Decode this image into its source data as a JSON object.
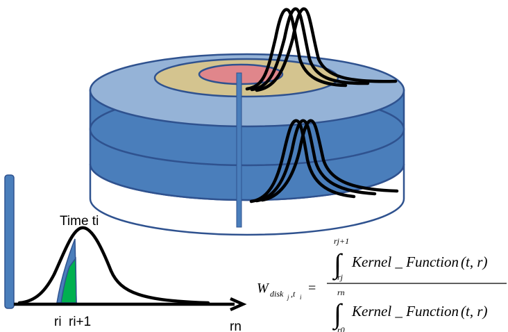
{
  "labels": {
    "time": "Time ti",
    "ri": "ri",
    "ri1": "ri+1",
    "rn": "rn"
  },
  "formula": {
    "W": "W",
    "W_sub_disk": "disk",
    "W_sub_j": "j",
    "W_sub_t": ",t",
    "W_sub_i": "i",
    "equals": "=",
    "num_upper": "rj+1",
    "num_lower": "rj",
    "den_upper": "rn",
    "den_lower": "r0",
    "kernel": "Kernel _ Function",
    "args": "(t, r)"
  },
  "colors": {
    "ring_outer": "#95b3d7",
    "ring_mid": "#d4c48f",
    "ring_inner": "#e0868b",
    "cylinder_side": "#4a7ebb",
    "stroke": "#2f528f",
    "green_fill": "#00b050",
    "blue_fill": "#4a7ebb"
  }
}
